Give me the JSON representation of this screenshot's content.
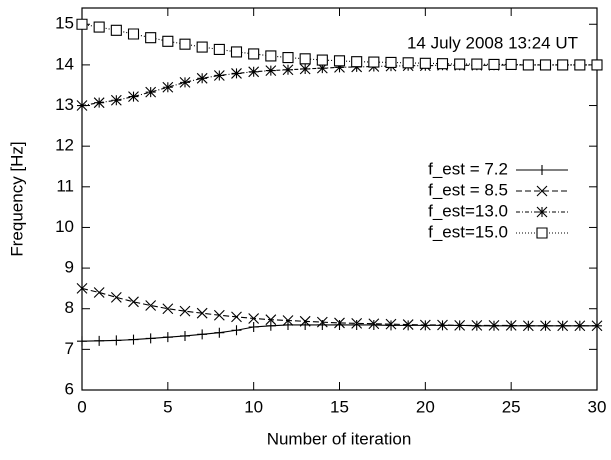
{
  "chart_data": {
    "type": "line",
    "annotation": "14 July 2008 13:24 UT",
    "x_label": "Number of iteration",
    "y_label": "Frequency [Hz]",
    "x": [
      0,
      1,
      2,
      3,
      4,
      5,
      6,
      7,
      8,
      9,
      10,
      11,
      12,
      13,
      14,
      15,
      16,
      17,
      18,
      19,
      20,
      21,
      22,
      23,
      24,
      25,
      26,
      27,
      28,
      29,
      30
    ],
    "series": [
      {
        "name": "f_est = 7.2",
        "color": "#000000",
        "marker": "plus",
        "dash": "none",
        "values": [
          7.2,
          7.21,
          7.22,
          7.24,
          7.27,
          7.3,
          7.33,
          7.37,
          7.41,
          7.47,
          7.55,
          7.58,
          7.6,
          7.6,
          7.6,
          7.6,
          7.6,
          7.6,
          7.59,
          7.59,
          7.59,
          7.59,
          7.59,
          7.58,
          7.58,
          7.58,
          7.58,
          7.58,
          7.58,
          7.58,
          7.58
        ]
      },
      {
        "name": "f_est = 8.5",
        "color": "#000000",
        "marker": "cross",
        "dash": "6,3",
        "values": [
          8.5,
          8.4,
          8.28,
          8.17,
          8.08,
          8.0,
          7.94,
          7.89,
          7.84,
          7.8,
          7.76,
          7.73,
          7.71,
          7.69,
          7.67,
          7.65,
          7.64,
          7.63,
          7.62,
          7.61,
          7.6,
          7.6,
          7.59,
          7.59,
          7.59,
          7.59,
          7.58,
          7.58,
          7.58,
          7.58,
          7.58
        ]
      },
      {
        "name": "f_est=13.0",
        "color": "#000000",
        "marker": "star",
        "dash": "4,2,1,2",
        "values": [
          13.0,
          13.07,
          13.13,
          13.22,
          13.33,
          13.45,
          13.57,
          13.67,
          13.74,
          13.79,
          13.83,
          13.86,
          13.88,
          13.9,
          13.92,
          13.94,
          13.95,
          13.96,
          13.97,
          13.98,
          13.98,
          13.99,
          13.99,
          13.99,
          13.99,
          14.0,
          14.0,
          14.0,
          14.0,
          14.0,
          14.0
        ]
      },
      {
        "name": "f_est=15.0",
        "color": "#000000",
        "marker": "square",
        "dash": "1,2",
        "values": [
          15.0,
          14.93,
          14.85,
          14.76,
          14.67,
          14.58,
          14.51,
          14.44,
          14.38,
          14.32,
          14.27,
          14.22,
          14.18,
          14.15,
          14.12,
          14.1,
          14.08,
          14.07,
          14.06,
          14.05,
          14.04,
          14.03,
          14.02,
          14.02,
          14.01,
          14.01,
          14.0,
          14.0,
          14.0,
          14.0,
          14.0
        ]
      }
    ],
    "xlim": [
      0,
      30
    ],
    "xticks": [
      0,
      5,
      10,
      15,
      20,
      25,
      30
    ],
    "ylim": [
      6,
      15.4
    ],
    "yticks": [
      6,
      7,
      8,
      9,
      10,
      11,
      12,
      13,
      14,
      15
    ]
  }
}
